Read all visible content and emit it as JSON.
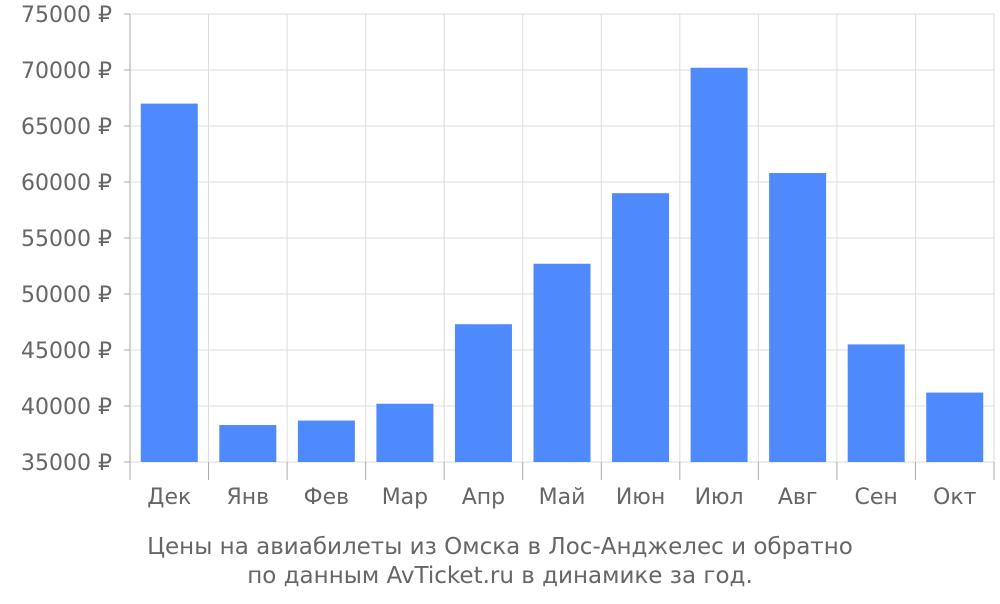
{
  "chart_data": {
    "type": "bar",
    "categories": [
      "Дек",
      "Янв",
      "Фев",
      "Мар",
      "Апр",
      "Май",
      "Июн",
      "Июл",
      "Авг",
      "Сен",
      "Окт"
    ],
    "values": [
      67000,
      38300,
      38700,
      40200,
      47300,
      52700,
      59000,
      70200,
      60800,
      45500,
      41200
    ],
    "y_ticks": [
      "35000 ₽",
      "40000 ₽",
      "45000 ₽",
      "50000 ₽",
      "55000 ₽",
      "60000 ₽",
      "65000 ₽",
      "70000 ₽",
      "75000 ₽"
    ],
    "y_tick_values": [
      35000,
      40000,
      45000,
      50000,
      55000,
      60000,
      65000,
      70000,
      75000
    ],
    "ylim": [
      35000,
      75000
    ],
    "grid": true,
    "bar_color": "#4e8afc",
    "grid_color": "#dddddd",
    "axis_color": "#aaaaaa",
    "text_color": "#666666"
  },
  "caption": {
    "line1": "Цены на авиабилеты из Омска в Лос-Анджелес и обратно",
    "line2": "по данным AvTicket.ru в динамике за год."
  }
}
